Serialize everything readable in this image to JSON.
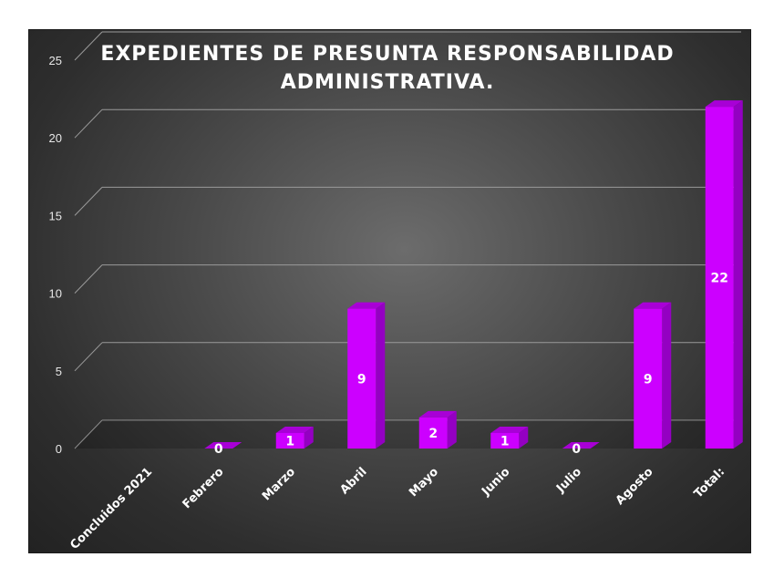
{
  "chart_data": {
    "type": "bar",
    "title_lines": [
      "EXPEDIENTES  DE PRESUNTA  RESPONSABILIDAD",
      "ADMINISTRATIVA."
    ],
    "categories": [
      "Concluidos 2021",
      "Febrero",
      "Marzo",
      "Abril",
      "Mayo",
      "Junio",
      "Julio",
      "Agosto",
      "Total:"
    ],
    "values": [
      null,
      0,
      1,
      9,
      2,
      1,
      0,
      9,
      22
    ],
    "data_labels": [
      "",
      "0",
      "1",
      "9",
      "2",
      "1",
      "0",
      "9",
      "22"
    ],
    "ylim": [
      0,
      25
    ],
    "yticks": [
      0,
      5,
      10,
      15,
      20,
      25
    ],
    "grid": true,
    "bar_style": "3d",
    "colors": {
      "bar_front": "#cc00ff",
      "bar_side": "#9400c2",
      "bar_top": "#a800d6",
      "gridline": "#9a9a9a",
      "background": "#444444"
    }
  }
}
